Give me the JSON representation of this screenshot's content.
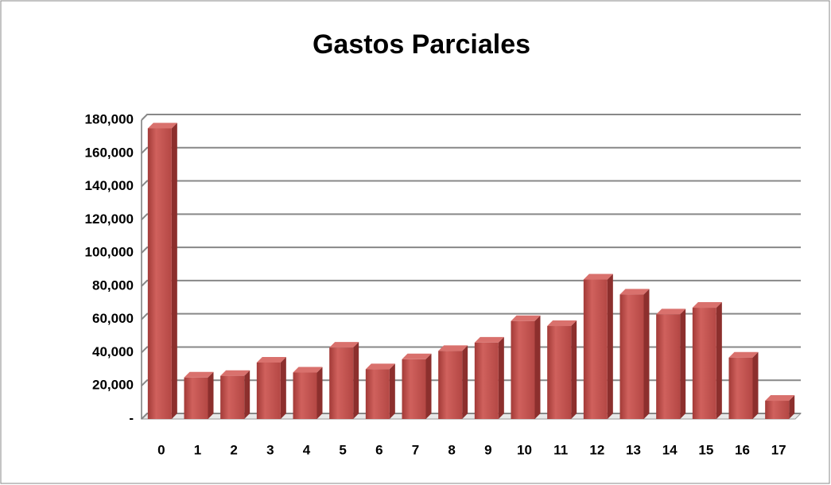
{
  "chart_data": {
    "type": "bar",
    "title": "Gastos Parciales",
    "categories": [
      "0",
      "1",
      "2",
      "3",
      "4",
      "5",
      "6",
      "7",
      "8",
      "9",
      "10",
      "11",
      "12",
      "13",
      "14",
      "15",
      "16",
      "17"
    ],
    "values": [
      175000,
      25000,
      26000,
      34000,
      28000,
      43000,
      30000,
      36000,
      41000,
      46000,
      59000,
      56000,
      84000,
      75000,
      63000,
      67000,
      37000,
      11000
    ],
    "color": "#c0504d",
    "ylim": [
      0,
      180000
    ],
    "yticks": [
      {
        "value": 0,
        "label": "-"
      },
      {
        "value": 20000,
        "label": "20,000"
      },
      {
        "value": 40000,
        "label": "40,000"
      },
      {
        "value": 60000,
        "label": "60,000"
      },
      {
        "value": 80000,
        "label": "80,000"
      },
      {
        "value": 100000,
        "label": "100,000"
      },
      {
        "value": 120000,
        "label": "120,000"
      },
      {
        "value": 140000,
        "label": "140,000"
      },
      {
        "value": 160000,
        "label": "160,000"
      },
      {
        "value": 180000,
        "label": "180,000"
      }
    ],
    "grid": true
  }
}
